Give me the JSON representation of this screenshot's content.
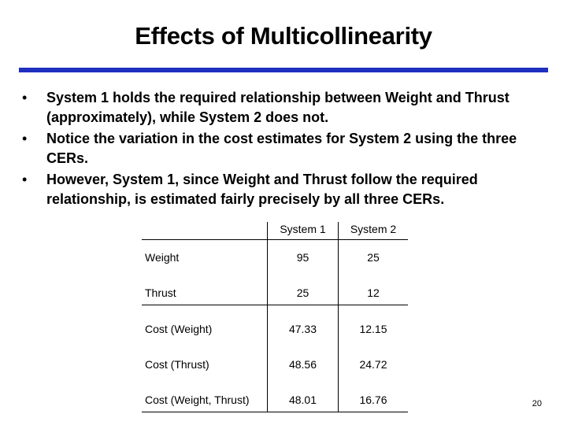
{
  "slide": {
    "title": "Effects of Multicollinearity",
    "bullets": [
      "System 1 holds the required relationship between Weight and Thrust (approximately), while System 2 does not.",
      "Notice the variation in the cost estimates for System 2 using the three CERs.",
      "However, System 1, since Weight and Thrust follow the required relationship, is estimated fairly precisely by all three CERs."
    ],
    "bullet_marker": "•",
    "page_number": "20"
  },
  "table": {
    "headers": [
      "",
      "System 1",
      "System 2"
    ],
    "rows": [
      {
        "label": "Weight",
        "system1": "95",
        "system2": "25"
      },
      {
        "label": "Thrust",
        "system1": "25",
        "system2": "12"
      },
      {
        "label": "Cost (Weight)",
        "system1": "47.33",
        "system2": "12.15"
      },
      {
        "label": "Cost (Thrust)",
        "system1": "48.56",
        "system2": "24.72"
      },
      {
        "label": "Cost (Weight, Thrust)",
        "system1": "48.01",
        "system2": "16.76"
      }
    ]
  },
  "colors": {
    "title_rule": "#1f2fbf"
  }
}
